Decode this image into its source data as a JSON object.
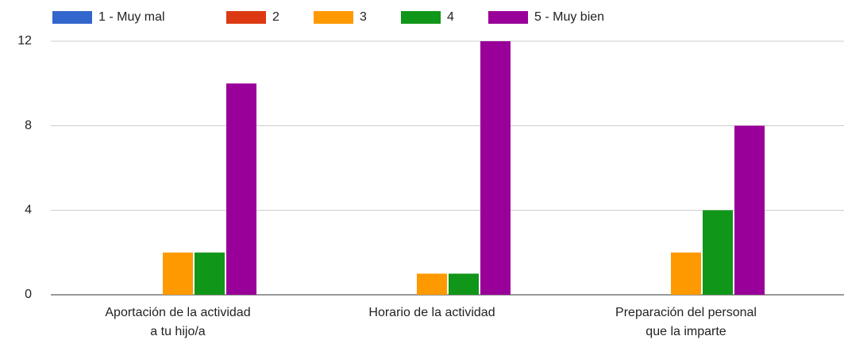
{
  "chart_data": {
    "type": "bar",
    "categories": [
      "Aportación de la actividad\na tu hijo/a",
      "Horario de la actividad",
      "Preparación del personal\nque la imparte"
    ],
    "series": [
      {
        "name": "1 - Muy mal",
        "color": "#3366cc",
        "values": [
          0,
          0,
          0
        ]
      },
      {
        "name": "2",
        "color": "#dc3912",
        "values": [
          0,
          0,
          0
        ]
      },
      {
        "name": "3",
        "color": "#ff9900",
        "values": [
          2,
          1,
          2
        ]
      },
      {
        "name": "4",
        "color": "#109618",
        "values": [
          2,
          1,
          4
        ]
      },
      {
        "name": "5 - Muy bien",
        "color": "#990099",
        "values": [
          10,
          12,
          8
        ]
      }
    ],
    "ylim": [
      0,
      12
    ],
    "yticks": [
      0,
      4,
      8,
      12
    ],
    "grid": true,
    "legend": "top"
  }
}
